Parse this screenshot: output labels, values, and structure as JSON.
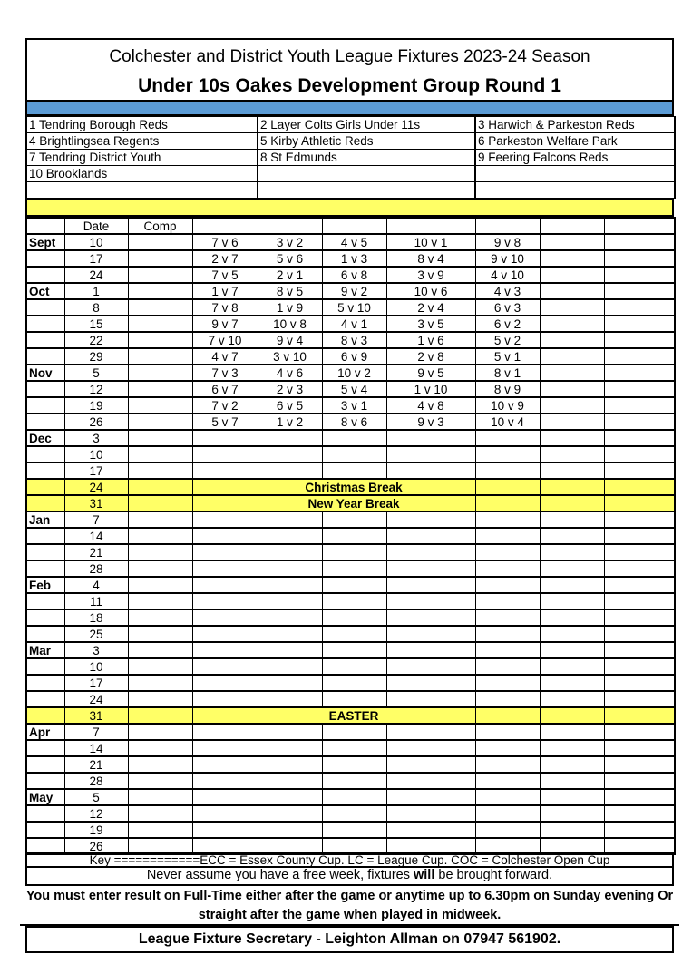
{
  "title": "Colchester and District Youth League Fixtures 2023-24 Season",
  "subtitle": "Under 10s Oakes Development Group Round 1",
  "teams": [
    [
      "1 Tendring Borough Reds",
      "2 Layer Colts Girls Under 11s",
      "3 Harwich & Parkeston Reds"
    ],
    [
      "4 Brightlingsea Regents",
      "5 Kirby Athletic Reds",
      "6 Parkeston Welfare Park"
    ],
    [
      "7 Tendring District Youth",
      "8 St Edmunds",
      "9 Feering Falcons Reds"
    ],
    [
      "10 Brooklands",
      "",
      ""
    ],
    [
      "",
      "",
      ""
    ]
  ],
  "headers": {
    "date": "Date",
    "comp": "Comp"
  },
  "rows": [
    {
      "month": "Sept",
      "date": "10",
      "fixtures": [
        "7 v 6",
        "3 v 2",
        "4 v 5",
        "10 v 1",
        "9 v 8"
      ]
    },
    {
      "month": "",
      "date": "17",
      "fixtures": [
        "2 v 7",
        "5 v 6",
        "1 v 3",
        "8 v 4",
        "9 v 10"
      ]
    },
    {
      "month": "",
      "date": "24",
      "fixtures": [
        "7 v 5",
        "2 v 1",
        "6 v 8",
        "3 v 9",
        "4 v 10"
      ]
    },
    {
      "month": "Oct",
      "date": "1",
      "fixtures": [
        "1 v 7",
        "8 v 5",
        "9 v 2",
        "10 v 6",
        "4 v 3"
      ]
    },
    {
      "month": "",
      "date": "8",
      "fixtures": [
        "7 v 8",
        "1 v 9",
        "5 v 10",
        "2 v 4",
        "6 v 3"
      ]
    },
    {
      "month": "",
      "date": "15",
      "fixtures": [
        "9 v 7",
        "10 v 8",
        "4 v 1",
        "3 v 5",
        "6 v 2"
      ]
    },
    {
      "month": "",
      "date": "22",
      "fixtures": [
        "7 v 10",
        "9 v 4",
        "8 v 3",
        "1 v 6",
        "5 v 2"
      ]
    },
    {
      "month": "",
      "date": "29",
      "fixtures": [
        "4 v 7",
        "3 v 10",
        "6 v 9",
        "2 v 8",
        "5 v 1"
      ]
    },
    {
      "month": "Nov",
      "date": "5",
      "fixtures": [
        "7 v 3",
        "4 v 6",
        "10 v 2",
        "9 v 5",
        "8 v 1"
      ]
    },
    {
      "month": "",
      "date": "12",
      "fixtures": [
        "6 v 7",
        "2 v 3",
        "5 v 4",
        "1 v 10",
        "8 v 9"
      ]
    },
    {
      "month": "",
      "date": "19",
      "fixtures": [
        "7 v 2",
        "6 v 5",
        "3 v 1",
        "4 v 8",
        "10 v 9"
      ]
    },
    {
      "month": "",
      "date": "26",
      "fixtures": [
        "5 v 7",
        "1 v 2",
        "8 v 6",
        "9 v 3",
        "10 v 4"
      ]
    },
    {
      "month": "Dec",
      "date": "3"
    },
    {
      "month": "",
      "date": "10"
    },
    {
      "month": "",
      "date": "17"
    },
    {
      "month": "",
      "date": "24",
      "note": "Christmas Break"
    },
    {
      "month": "",
      "date": "31",
      "note": "New Year Break"
    },
    {
      "month": "Jan",
      "date": "7"
    },
    {
      "month": "",
      "date": "14"
    },
    {
      "month": "",
      "date": "21"
    },
    {
      "month": "",
      "date": "28"
    },
    {
      "month": "Feb",
      "date": "4"
    },
    {
      "month": "",
      "date": "11"
    },
    {
      "month": "",
      "date": "18"
    },
    {
      "month": "",
      "date": "25"
    },
    {
      "month": "Mar",
      "date": "3"
    },
    {
      "month": "",
      "date": "10"
    },
    {
      "month": "",
      "date": "17"
    },
    {
      "month": "",
      "date": "24"
    },
    {
      "month": "",
      "date": "31",
      "note": "EASTER"
    },
    {
      "month": "Apr",
      "date": "7"
    },
    {
      "month": "",
      "date": "14"
    },
    {
      "month": "",
      "date": "21"
    },
    {
      "month": "",
      "date": "28"
    },
    {
      "month": "May",
      "date": "5"
    },
    {
      "month": "",
      "date": "12"
    },
    {
      "month": "",
      "date": "19"
    },
    {
      "month": "",
      "date": "26"
    }
  ],
  "footer": {
    "key": "Key ============ECC = Essex County Cup. LC = League Cup. COC = Colchester Open Cup",
    "warning_pre": "Never assume you have a free week, fixtures ",
    "warning_bold": "will",
    "warning_post": " be brought forward.",
    "results": "You must enter result on Full-Time either after the game or anytime up to 6.30pm on Sunday evening Or straight after the game when played in midweek.",
    "secretary": "League Fixture Secretary - Leighton Allman on 07947 561902."
  },
  "colors": {
    "blue_bar": "#5b9bd5",
    "highlight": "#ffff66"
  }
}
